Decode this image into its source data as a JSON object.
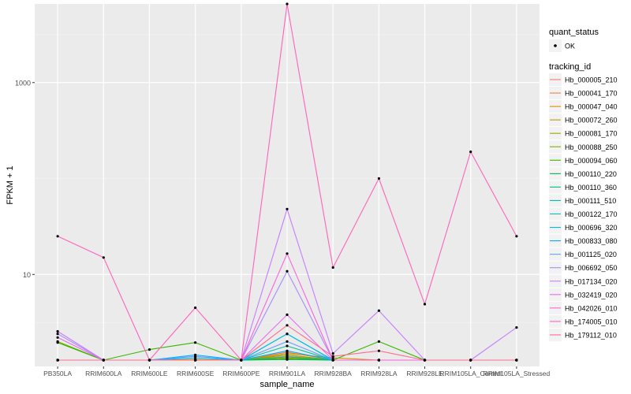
{
  "chart_data": {
    "type": "line",
    "xlabel": "sample_name",
    "ylabel": "FPKM + 1",
    "y_scale": "log10",
    "ylim": [
      1.1,
      6600
    ],
    "y_ticks": [
      {
        "value": 10,
        "label": "10"
      },
      {
        "value": 1000,
        "label": "1000"
      }
    ],
    "categories": [
      "PB350LA",
      "RRIM600LA",
      "RRIM600LE",
      "RRIM600SE",
      "RRIM600PE",
      "RRIM901LA",
      "RRIM928BA",
      "RRIM928LA",
      "RRIM928LE",
      "RRIM105LA_Control",
      "RRIM105LA_Stressed"
    ],
    "legend_quant": {
      "title": "quant_status",
      "entries": [
        "OK"
      ]
    },
    "legend_title": "tracking_id",
    "grid": true,
    "series": [
      {
        "name": "Hb_000005_210",
        "color": "#F8766D",
        "values": [
          1.28,
          1.28,
          1.28,
          1.28,
          1.28,
          1.4,
          1.28,
          1.28,
          1.28,
          1.28,
          1.28
        ]
      },
      {
        "name": "Hb_000041_170",
        "color": "#EE8044",
        "values": [
          1.28,
          1.28,
          1.28,
          1.28,
          1.28,
          1.55,
          1.28,
          1.28,
          1.28,
          1.28,
          1.28
        ]
      },
      {
        "name": "Hb_000047_040",
        "color": "#DE8C00",
        "values": [
          1.28,
          1.28,
          1.28,
          1.28,
          1.28,
          1.5,
          1.35,
          1.28,
          1.28,
          1.28,
          1.28
        ]
      },
      {
        "name": "Hb_000072_260",
        "color": "#C59900",
        "values": [
          1.28,
          1.28,
          1.28,
          1.3,
          1.28,
          1.45,
          1.28,
          1.28,
          1.28,
          1.28,
          1.28
        ]
      },
      {
        "name": "Hb_000081_170",
        "color": "#A3A500",
        "values": [
          1.28,
          1.28,
          1.28,
          1.28,
          1.28,
          1.35,
          1.28,
          1.28,
          1.28,
          1.28,
          1.28
        ]
      },
      {
        "name": "Hb_000088_250",
        "color": "#7CAE00",
        "values": [
          2.0,
          1.28,
          1.28,
          1.28,
          1.28,
          1.45,
          1.28,
          1.28,
          1.28,
          1.28,
          1.28
        ]
      },
      {
        "name": "Hb_000094_060",
        "color": "#39B600",
        "values": [
          1.95,
          1.28,
          1.65,
          1.95,
          1.28,
          1.32,
          1.28,
          2.0,
          1.28,
          1.28,
          1.28
        ]
      },
      {
        "name": "Hb_000110_220",
        "color": "#00BB4E",
        "values": [
          1.28,
          1.28,
          1.28,
          1.28,
          1.28,
          1.3,
          1.28,
          1.28,
          1.28,
          1.28,
          1.28
        ]
      },
      {
        "name": "Hb_000110_360",
        "color": "#00BF7D",
        "values": [
          1.28,
          1.28,
          1.28,
          1.28,
          1.28,
          1.38,
          1.28,
          1.28,
          1.28,
          1.28,
          1.28
        ]
      },
      {
        "name": "Hb_000111_510",
        "color": "#00C1A3",
        "values": [
          1.28,
          1.28,
          1.28,
          1.28,
          1.28,
          1.8,
          1.28,
          1.28,
          1.28,
          1.28,
          1.28
        ]
      },
      {
        "name": "Hb_000122_170",
        "color": "#00BFC4",
        "values": [
          1.28,
          1.28,
          1.28,
          1.28,
          1.28,
          2.4,
          1.28,
          1.28,
          1.28,
          1.28,
          1.28
        ]
      },
      {
        "name": "Hb_000696_320",
        "color": "#00B8E5",
        "values": [
          1.28,
          1.28,
          1.28,
          1.35,
          1.28,
          2.4,
          1.28,
          1.28,
          1.28,
          1.28,
          1.28
        ]
      },
      {
        "name": "Hb_000833_080",
        "color": "#00ABFD",
        "values": [
          1.28,
          1.28,
          1.28,
          1.45,
          1.28,
          1.6,
          1.28,
          1.28,
          1.28,
          1.28,
          1.28
        ]
      },
      {
        "name": "Hb_001125_020",
        "color": "#619CFF",
        "values": [
          1.28,
          1.28,
          1.28,
          1.4,
          1.28,
          2.0,
          1.28,
          1.28,
          1.28,
          1.28,
          1.28
        ]
      },
      {
        "name": "Hb_006692_050",
        "color": "#A58AFF",
        "values": [
          2.4,
          1.28,
          1.28,
          1.28,
          1.28,
          10.8,
          1.28,
          1.28,
          1.28,
          1.28,
          1.28
        ]
      },
      {
        "name": "Hb_017134_020",
        "color": "#C77CFF",
        "values": [
          2.55,
          1.28,
          1.28,
          1.28,
          1.28,
          48.0,
          1.5,
          4.2,
          1.28,
          1.28,
          2.8
        ]
      },
      {
        "name": "Hb_032419_020",
        "color": "#E76BF3",
        "values": [
          2.2,
          1.28,
          1.28,
          1.28,
          1.28,
          3.8,
          1.28,
          1.28,
          1.28,
          1.28,
          1.28
        ]
      },
      {
        "name": "Hb_042026_010",
        "color": "#FA62DB",
        "values": [
          1.28,
          1.28,
          1.28,
          1.28,
          1.28,
          16.5,
          1.28,
          1.28,
          1.28,
          1.28,
          1.28
        ]
      },
      {
        "name": "Hb_174005_010",
        "color": "#FF62BC",
        "values": [
          25.0,
          15.0,
          1.28,
          4.5,
          1.28,
          6600,
          11.8,
          100,
          4.9,
          190,
          25.0
        ]
      },
      {
        "name": "Hb_179112_010",
        "color": "#FF6C91",
        "values": [
          1.28,
          1.28,
          1.28,
          1.28,
          1.28,
          2.95,
          1.4,
          1.6,
          1.28,
          1.28,
          1.28
        ]
      }
    ]
  }
}
